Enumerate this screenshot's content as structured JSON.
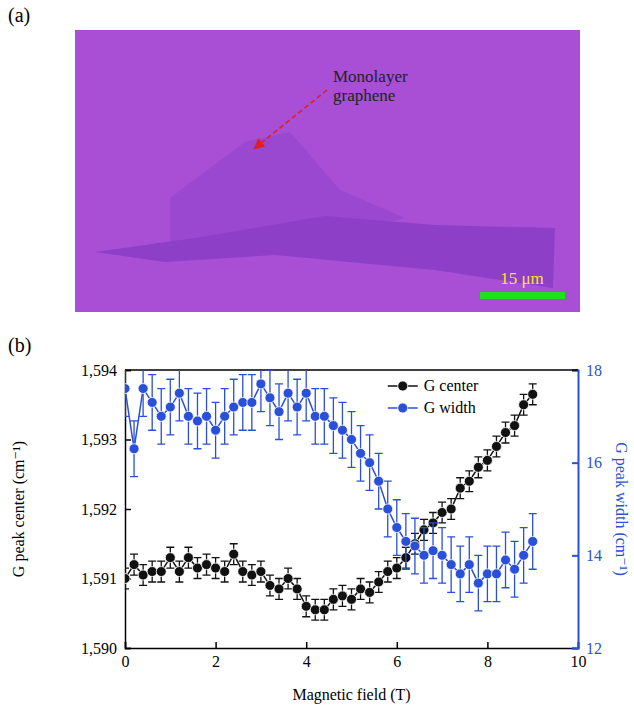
{
  "image_panel": {
    "label": "(a)",
    "annotation": "Monolayer graphene",
    "scale_bar": "15 μm"
  },
  "chart_data": {
    "type": "scatter",
    "panel_label": "(b)",
    "x_label": "Magnetic field (T)",
    "y_label": "G peak center (cm⁻¹)",
    "y2_label": "G peak width (cm⁻¹)",
    "xlim": [
      0,
      10
    ],
    "xticks": [
      0,
      2,
      4,
      6,
      8,
      10
    ],
    "ylim": [
      1590,
      1594
    ],
    "yticks": [
      {
        "value": 1590,
        "label": "1,590"
      },
      {
        "value": 1591,
        "label": "1,591"
      },
      {
        "value": 1592,
        "label": "1,592"
      },
      {
        "value": 1593,
        "label": "1,593"
      },
      {
        "value": 1594,
        "label": "1,594"
      }
    ],
    "y2lim": [
      12,
      18
    ],
    "y2ticks": [
      12,
      14,
      16,
      18
    ],
    "legend": "upper right",
    "x": [
      0,
      0.2,
      0.4,
      0.6,
      0.8,
      1.0,
      1.2,
      1.4,
      1.6,
      1.8,
      2.0,
      2.2,
      2.4,
      2.6,
      2.8,
      3.0,
      3.2,
      3.4,
      3.6,
      3.8,
      4.0,
      4.2,
      4.4,
      4.6,
      4.8,
      5.0,
      5.2,
      5.4,
      5.6,
      5.8,
      6.0,
      6.2,
      6.4,
      6.6,
      6.8,
      7.0,
      7.2,
      7.4,
      7.6,
      7.8,
      8.0,
      8.2,
      8.4,
      8.6,
      8.8,
      9.0
    ],
    "series": [
      {
        "name": "G center",
        "color": "#111111",
        "marker": "circle",
        "line_style": "solid",
        "values": [
          1591.0,
          1591.2,
          1591.05,
          1591.1,
          1591.1,
          1591.3,
          1591.1,
          1591.3,
          1591.15,
          1591.2,
          1591.15,
          1591.1,
          1591.35,
          1591.1,
          1591.05,
          1591.1,
          1590.9,
          1590.85,
          1591.0,
          1590.85,
          1590.6,
          1590.55,
          1590.55,
          1590.7,
          1590.75,
          1590.7,
          1590.85,
          1590.8,
          1590.95,
          1591.1,
          1591.15,
          1591.3,
          1591.5,
          1591.7,
          1591.8,
          1591.95,
          1592.0,
          1592.3,
          1592.4,
          1592.6,
          1592.7,
          1592.9,
          1593.1,
          1593.2,
          1593.5,
          1593.65
        ],
        "errors": [
          0.15,
          0.15,
          0.15,
          0.15,
          0.15,
          0.15,
          0.15,
          0.15,
          0.15,
          0.15,
          0.15,
          0.15,
          0.15,
          0.15,
          0.15,
          0.15,
          0.15,
          0.15,
          0.15,
          0.15,
          0.15,
          0.15,
          0.15,
          0.15,
          0.15,
          0.15,
          0.15,
          0.15,
          0.15,
          0.15,
          0.15,
          0.15,
          0.15,
          0.15,
          0.15,
          0.15,
          0.15,
          0.15,
          0.15,
          0.15,
          0.15,
          0.15,
          0.15,
          0.15,
          0.15,
          0.15
        ]
      },
      {
        "name": "G width",
        "color": "#2a4fd8",
        "marker": "circle",
        "line_style": "solid",
        "axis": "y2",
        "values": [
          17.6,
          16.3,
          17.6,
          17.3,
          17.0,
          17.2,
          17.5,
          17.0,
          16.9,
          17.0,
          16.7,
          17.0,
          17.2,
          17.3,
          17.3,
          17.7,
          17.4,
          17.1,
          17.5,
          17.2,
          17.5,
          17.0,
          17.0,
          16.8,
          16.7,
          16.5,
          16.2,
          16.0,
          15.6,
          15.0,
          14.6,
          14.3,
          14.2,
          14.0,
          14.1,
          14.0,
          13.8,
          13.6,
          13.8,
          13.4,
          13.6,
          13.6,
          13.9,
          13.7,
          14.0,
          14.3
        ],
        "errors": [
          0.6,
          0.6,
          0.6,
          0.6,
          0.6,
          0.6,
          0.6,
          0.6,
          0.6,
          0.6,
          0.6,
          0.6,
          0.6,
          0.6,
          0.6,
          0.6,
          0.6,
          0.6,
          0.6,
          0.6,
          0.6,
          0.6,
          0.6,
          0.6,
          0.6,
          0.6,
          0.6,
          0.6,
          0.6,
          0.6,
          0.6,
          0.6,
          0.6,
          0.6,
          0.6,
          0.6,
          0.6,
          0.6,
          0.6,
          0.6,
          0.6,
          0.6,
          0.6,
          0.6,
          0.6,
          0.6
        ]
      }
    ]
  }
}
